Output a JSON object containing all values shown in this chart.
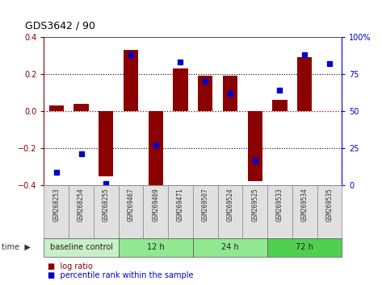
{
  "title": "GDS3642 / 90",
  "samples": [
    "GSM268253",
    "GSM268254",
    "GSM268255",
    "GSM269467",
    "GSM269469",
    "GSM269471",
    "GSM269507",
    "GSM269524",
    "GSM269525",
    "GSM269533",
    "GSM269534",
    "GSM269535"
  ],
  "log_ratio": [
    0.03,
    0.04,
    -0.35,
    0.33,
    -0.44,
    0.23,
    0.19,
    0.19,
    -0.38,
    0.06,
    0.29,
    0.0
  ],
  "pct_rank": [
    9,
    21,
    1,
    88,
    27,
    83,
    70,
    62,
    17,
    64,
    88,
    82
  ],
  "bar_color": "#8b0000",
  "dot_color": "#0000cc",
  "ylim_left": [
    -0.4,
    0.4
  ],
  "yticks_left": [
    -0.4,
    -0.2,
    0.0,
    0.2,
    0.4
  ],
  "ylim_right": [
    0,
    100
  ],
  "yticks_right": [
    0,
    25,
    50,
    75,
    100
  ],
  "ytick_right_labels": [
    "0",
    "25",
    "50",
    "75",
    "100%"
  ],
  "grid_lines": [
    -0.2,
    0.0,
    0.2
  ],
  "groups": [
    {
      "label": "baseline control",
      "start": 0,
      "end": 3,
      "color": "#c8f0c8"
    },
    {
      "label": "12 h",
      "start": 3,
      "end": 6,
      "color": "#90e890"
    },
    {
      "label": "24 h",
      "start": 6,
      "end": 9,
      "color": "#90e890"
    },
    {
      "label": "72 h",
      "start": 9,
      "end": 12,
      "color": "#50d050"
    }
  ],
  "legend_items": [
    {
      "label": "log ratio",
      "color": "#8b0000"
    },
    {
      "label": "percentile rank within the sample",
      "color": "#0000cc"
    }
  ]
}
